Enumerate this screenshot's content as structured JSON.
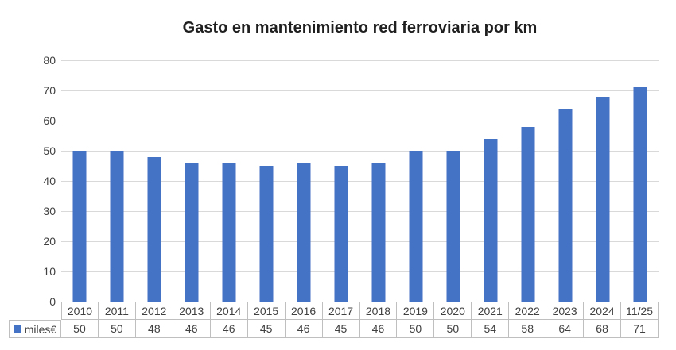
{
  "chart_data": {
    "type": "bar",
    "title": "Gasto en mantenimiento red ferroviaria por km",
    "categories": [
      "2010",
      "2011",
      "2012",
      "2013",
      "2014",
      "2015",
      "2016",
      "2017",
      "2018",
      "2019",
      "2020",
      "2021",
      "2022",
      "2023",
      "2024",
      "11/25"
    ],
    "series": [
      {
        "name": "miles€",
        "values": [
          50,
          50,
          48,
          46,
          46,
          45,
          46,
          45,
          46,
          50,
          50,
          54,
          58,
          64,
          68,
          71
        ]
      }
    ],
    "xlabel": "",
    "ylabel": "",
    "ylim": [
      0,
      80
    ],
    "yticks": [
      0,
      10,
      20,
      30,
      40,
      50,
      60,
      70,
      80
    ],
    "grid": true,
    "legend_position": "data-table-left",
    "has_data_table": true,
    "colors": {
      "bar": "#4472C4",
      "gridline": "#D9D9D9",
      "table_border": "#BFBFBF",
      "text": "#404040",
      "title_text": "#1F1F1F",
      "background": "#FFFFFF"
    }
  }
}
